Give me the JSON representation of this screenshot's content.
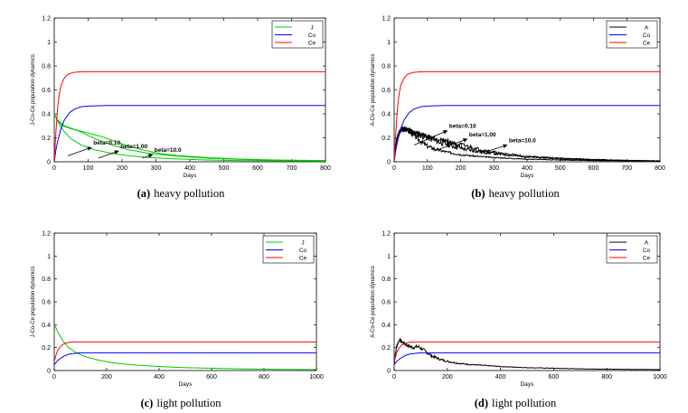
{
  "chart_data": [
    {
      "type": "line",
      "panel_label": "(a)",
      "caption_text": "heavy pollution",
      "xlabel": "Days",
      "ylabel": "J-Co-Ce population dynamics",
      "xlim": [
        0,
        800
      ],
      "ylim": [
        0,
        1.2
      ],
      "xticks": [
        "0",
        "100",
        "200",
        "300",
        "400",
        "500",
        "600",
        "700",
        "800"
      ],
      "yticks": [
        "0",
        "0.2",
        "0.4",
        "0.6",
        "0.8",
        "1",
        "1.2"
      ],
      "legend_position": "top-right",
      "series": [
        {
          "name": "J",
          "color": "#00cc00",
          "x": [
            0,
            5,
            15,
            30,
            50,
            80,
            120,
            170,
            220,
            280,
            350,
            450,
            550,
            650,
            800
          ],
          "values": [
            0.4,
            0.37,
            0.31,
            0.25,
            0.19,
            0.14,
            0.1,
            0.07,
            0.05,
            0.035,
            0.025,
            0.015,
            0.01,
            0.008,
            0.006
          ]
        },
        {
          "name": "J",
          "color": "#00cc00",
          "x": [
            0,
            10,
            25,
            45,
            70,
            100,
            130,
            170,
            220,
            280,
            350,
            450,
            550,
            650,
            800
          ],
          "values": [
            0.4,
            0.34,
            0.3,
            0.28,
            0.26,
            0.22,
            0.18,
            0.14,
            0.1,
            0.07,
            0.05,
            0.03,
            0.02,
            0.012,
            0.008
          ]
        },
        {
          "name": "J",
          "color": "#00cc00",
          "x": [
            0,
            10,
            30,
            60,
            100,
            140,
            180,
            220,
            260,
            310,
            370,
            450,
            550,
            650,
            800
          ],
          "values": [
            0.4,
            0.35,
            0.3,
            0.27,
            0.24,
            0.21,
            0.17,
            0.13,
            0.1,
            0.07,
            0.05,
            0.035,
            0.022,
            0.015,
            0.01
          ]
        },
        {
          "name": "Co",
          "color": "#0000ff",
          "x": [
            0,
            5,
            10,
            20,
            30,
            45,
            60,
            80,
            100,
            150,
            200,
            300,
            800
          ],
          "values": [
            0,
            0.1,
            0.17,
            0.28,
            0.35,
            0.41,
            0.44,
            0.46,
            0.465,
            0.47,
            0.47,
            0.47,
            0.47
          ]
        },
        {
          "name": "Ce",
          "color": "#ff0000",
          "x": [
            0,
            5,
            10,
            15,
            20,
            30,
            40,
            55,
            70,
            90,
            120,
            200,
            800
          ],
          "values": [
            0,
            0.25,
            0.45,
            0.57,
            0.64,
            0.7,
            0.73,
            0.745,
            0.75,
            0.752,
            0.752,
            0.752,
            0.752
          ]
        }
      ],
      "legend": [
        {
          "label": "J",
          "color": "#00cc00"
        },
        {
          "label": "Co",
          "color": "#0000ff"
        },
        {
          "label": "Ce",
          "color": "#ff0000"
        }
      ],
      "annotations": [
        {
          "text": "beta=0.10",
          "from": [
            40,
            0.05
          ],
          "to": [
            110,
            0.12
          ]
        },
        {
          "text": "beta=1.00",
          "from": [
            130,
            0.03
          ],
          "to": [
            190,
            0.09
          ]
        },
        {
          "text": "beta=10.0",
          "from": [
            260,
            0.03
          ],
          "to": [
            290,
            0.06
          ]
        }
      ]
    },
    {
      "type": "line",
      "panel_label": "(b)",
      "caption_text": "heavy pollution",
      "xlabel": "Days",
      "ylabel": "A-Co-Ce population dynamics",
      "xlim": [
        0,
        800
      ],
      "ylim": [
        0,
        1.2
      ],
      "xticks": [
        "0",
        "100",
        "200",
        "300",
        "400",
        "500",
        "600",
        "700",
        "800"
      ],
      "yticks": [
        "0",
        "0.2",
        "0.4",
        "0.6",
        "0.8",
        "1",
        "1.2"
      ],
      "legend_position": "top-right",
      "series": [
        {
          "name": "A",
          "color": "#000000",
          "x": [
            0,
            5,
            10,
            20,
            30,
            40,
            60,
            80,
            100,
            130,
            160,
            200,
            250,
            300,
            400,
            500,
            600,
            700,
            800
          ],
          "values": [
            0.02,
            0.12,
            0.2,
            0.27,
            0.28,
            0.26,
            0.22,
            0.17,
            0.13,
            0.1,
            0.08,
            0.06,
            0.045,
            0.035,
            0.022,
            0.015,
            0.01,
            0.007,
            0.005
          ],
          "noise": 0.02,
          "seed": 3
        },
        {
          "name": "A",
          "color": "#000000",
          "x": [
            0,
            5,
            10,
            20,
            30,
            50,
            80,
            110,
            140,
            180,
            220,
            270,
            330,
            400,
            500,
            600,
            700,
            800
          ],
          "values": [
            0.02,
            0.12,
            0.22,
            0.27,
            0.28,
            0.25,
            0.22,
            0.19,
            0.16,
            0.13,
            0.1,
            0.08,
            0.06,
            0.04,
            0.025,
            0.015,
            0.01,
            0.007
          ],
          "noise": 0.025,
          "seed": 11
        },
        {
          "name": "A",
          "color": "#000000",
          "x": [
            0,
            5,
            10,
            20,
            40,
            70,
            100,
            150,
            200,
            260,
            320,
            400,
            500,
            600,
            700,
            800
          ],
          "values": [
            0.02,
            0.12,
            0.22,
            0.26,
            0.27,
            0.24,
            0.21,
            0.18,
            0.14,
            0.1,
            0.07,
            0.045,
            0.03,
            0.02,
            0.012,
            0.008
          ],
          "noise": 0.02,
          "seed": 27
        },
        {
          "name": "Co",
          "color": "#0000ff",
          "x": [
            0,
            5,
            10,
            20,
            30,
            45,
            60,
            80,
            100,
            150,
            200,
            300,
            800
          ],
          "values": [
            0,
            0.1,
            0.17,
            0.28,
            0.35,
            0.41,
            0.44,
            0.46,
            0.465,
            0.47,
            0.47,
            0.47,
            0.47
          ]
        },
        {
          "name": "Ce",
          "color": "#ff0000",
          "x": [
            0,
            5,
            10,
            15,
            20,
            30,
            40,
            55,
            70,
            90,
            120,
            200,
            800
          ],
          "values": [
            0,
            0.25,
            0.45,
            0.57,
            0.64,
            0.7,
            0.73,
            0.745,
            0.75,
            0.752,
            0.752,
            0.752,
            0.752
          ]
        }
      ],
      "legend": [
        {
          "label": "A",
          "color": "#000000"
        },
        {
          "label": "Co",
          "color": "#0000ff"
        },
        {
          "label": "Ce",
          "color": "#ff0000"
        }
      ],
      "annotations": [
        {
          "text": "beta=0.10",
          "from": [
            60,
            0.14
          ],
          "to": [
            160,
            0.26
          ]
        },
        {
          "text": "beta=1.00",
          "from": [
            120,
            0.09
          ],
          "to": [
            220,
            0.19
          ]
        },
        {
          "text": "beta=10.0",
          "from": [
            260,
            0.07
          ],
          "to": [
            340,
            0.14
          ]
        }
      ]
    },
    {
      "type": "line",
      "panel_label": "(c)",
      "caption_text": "light pollution",
      "xlabel": "Days",
      "ylabel": "J-Co-Ce population dynamics",
      "xlim": [
        0,
        1000
      ],
      "ylim": [
        0,
        1.2
      ],
      "xticks": [
        "0",
        "200",
        "400",
        "600",
        "800",
        "1000"
      ],
      "yticks": [
        "0",
        "0.2",
        "0.4",
        "0.6",
        "0.8",
        "1",
        "1.2"
      ],
      "legend_position": "top-right",
      "series": [
        {
          "name": "J",
          "color": "#00cc00",
          "x": [
            0,
            5,
            15,
            30,
            50,
            80,
            120,
            170,
            230,
            300,
            400,
            500,
            600,
            700,
            800,
            900,
            1000
          ],
          "values": [
            0.4,
            0.38,
            0.33,
            0.27,
            0.21,
            0.16,
            0.12,
            0.09,
            0.065,
            0.05,
            0.035,
            0.025,
            0.02,
            0.015,
            0.012,
            0.01,
            0.008
          ]
        },
        {
          "name": "Co",
          "color": "#0000ff",
          "x": [
            0,
            10,
            20,
            40,
            60,
            80,
            100,
            150,
            1000
          ],
          "values": [
            0.05,
            0.08,
            0.1,
            0.13,
            0.145,
            0.15,
            0.155,
            0.155,
            0.155
          ]
        },
        {
          "name": "Ce",
          "color": "#ff0000",
          "x": [
            0,
            5,
            10,
            20,
            30,
            45,
            60,
            80,
            120,
            1000
          ],
          "values": [
            0.08,
            0.12,
            0.16,
            0.2,
            0.225,
            0.24,
            0.248,
            0.25,
            0.25,
            0.25
          ]
        }
      ],
      "legend": [
        {
          "label": "J",
          "color": "#00cc00"
        },
        {
          "label": "Co",
          "color": "#0000ff"
        },
        {
          "label": "Ce",
          "color": "#ff0000"
        }
      ],
      "annotations": []
    },
    {
      "type": "line",
      "panel_label": "(d)",
      "caption_text": "light pollution",
      "xlabel": "Days",
      "ylabel": "A-Co-Ce population dynamics",
      "xlim": [
        0,
        1000
      ],
      "ylim": [
        0,
        1.2
      ],
      "xticks": [
        "0",
        "200",
        "400",
        "600",
        "800",
        "1000"
      ],
      "yticks": [
        "0",
        "0.2",
        "0.4",
        "0.6",
        "0.8",
        "1",
        "1.2"
      ],
      "legend_position": "top-right",
      "series": [
        {
          "name": "A",
          "color": "#000000",
          "x": [
            0,
            5,
            10,
            20,
            30,
            50,
            70,
            90,
            110,
            140,
            170,
            200,
            250,
            300,
            400,
            500,
            600,
            700,
            800,
            900,
            1000
          ],
          "values": [
            0.05,
            0.15,
            0.22,
            0.27,
            0.25,
            0.22,
            0.2,
            0.21,
            0.18,
            0.13,
            0.1,
            0.08,
            0.06,
            0.05,
            0.035,
            0.025,
            0.02,
            0.015,
            0.012,
            0.01,
            0.008
          ],
          "noise": 0.015,
          "seed": 7
        },
        {
          "name": "Co",
          "color": "#0000ff",
          "x": [
            0,
            10,
            20,
            40,
            60,
            80,
            100,
            150,
            1000
          ],
          "values": [
            0.05,
            0.08,
            0.1,
            0.13,
            0.145,
            0.15,
            0.155,
            0.155,
            0.155
          ]
        },
        {
          "name": "Ce",
          "color": "#ff0000",
          "x": [
            0,
            5,
            10,
            20,
            30,
            45,
            60,
            80,
            120,
            1000
          ],
          "values": [
            0.08,
            0.12,
            0.16,
            0.2,
            0.225,
            0.24,
            0.248,
            0.25,
            0.25,
            0.25
          ]
        }
      ],
      "legend": [
        {
          "label": "A",
          "color": "#000000"
        },
        {
          "label": "Co",
          "color": "#0000ff"
        },
        {
          "label": "Ce",
          "color": "#ff0000"
        }
      ],
      "annotations": []
    }
  ]
}
